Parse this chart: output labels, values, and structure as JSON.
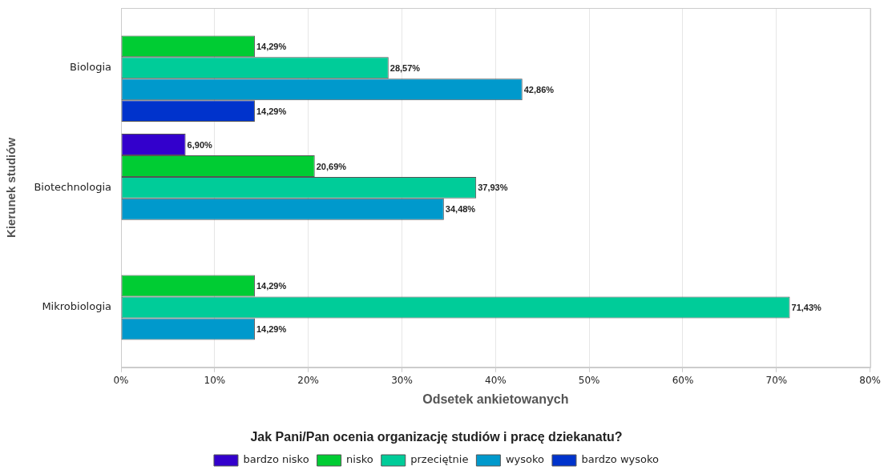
{
  "chart_data": {
    "type": "bar",
    "orientation": "horizontal",
    "xlabel": "Odsetek ankietowanych",
    "ylabel": "Kierunek studiów",
    "legend_title": "Jak Pani/Pan ocenia organizację studiów i pracę dziekanatu?",
    "categories": [
      "Biologia",
      "Biotechnologia",
      "Mikrobiologia"
    ],
    "series": [
      {
        "name": "bardzo nisko",
        "color": "#3300cc",
        "values": [
          null,
          6.9,
          null
        ],
        "value_labels": [
          null,
          "6,90%",
          null
        ]
      },
      {
        "name": "nisko",
        "color": "#00cc33",
        "values": [
          14.29,
          20.69,
          14.29
        ],
        "value_labels": [
          "14,29%",
          "20,69%",
          "14,29%"
        ]
      },
      {
        "name": "przeciętnie",
        "color": "#00cc99",
        "values": [
          28.57,
          37.93,
          71.43
        ],
        "value_labels": [
          "28,57%",
          "37,93%",
          "71,43%"
        ]
      },
      {
        "name": "wysoko",
        "color": "#0099cc",
        "values": [
          42.86,
          34.48,
          14.29
        ],
        "value_labels": [
          "42,86%",
          "34,48%",
          "14,29%"
        ]
      },
      {
        "name": "bardzo wysoko",
        "color": "#0033cc",
        "values": [
          14.29,
          null,
          null
        ],
        "value_labels": [
          "14,29%",
          null,
          null
        ]
      }
    ],
    "xlim": [
      0,
      80
    ],
    "xticks": [
      {
        "value": 0,
        "label": "0%"
      },
      {
        "value": 10,
        "label": "10%"
      },
      {
        "value": 20,
        "label": "20%"
      },
      {
        "value": 30,
        "label": "30%"
      },
      {
        "value": 40,
        "label": "40%"
      },
      {
        "value": 50,
        "label": "50%"
      },
      {
        "value": 60,
        "label": "60%"
      },
      {
        "value": 70,
        "label": "70%"
      },
      {
        "value": 80,
        "label": "80%"
      }
    ],
    "grid": "x",
    "legend": "bottom"
  }
}
